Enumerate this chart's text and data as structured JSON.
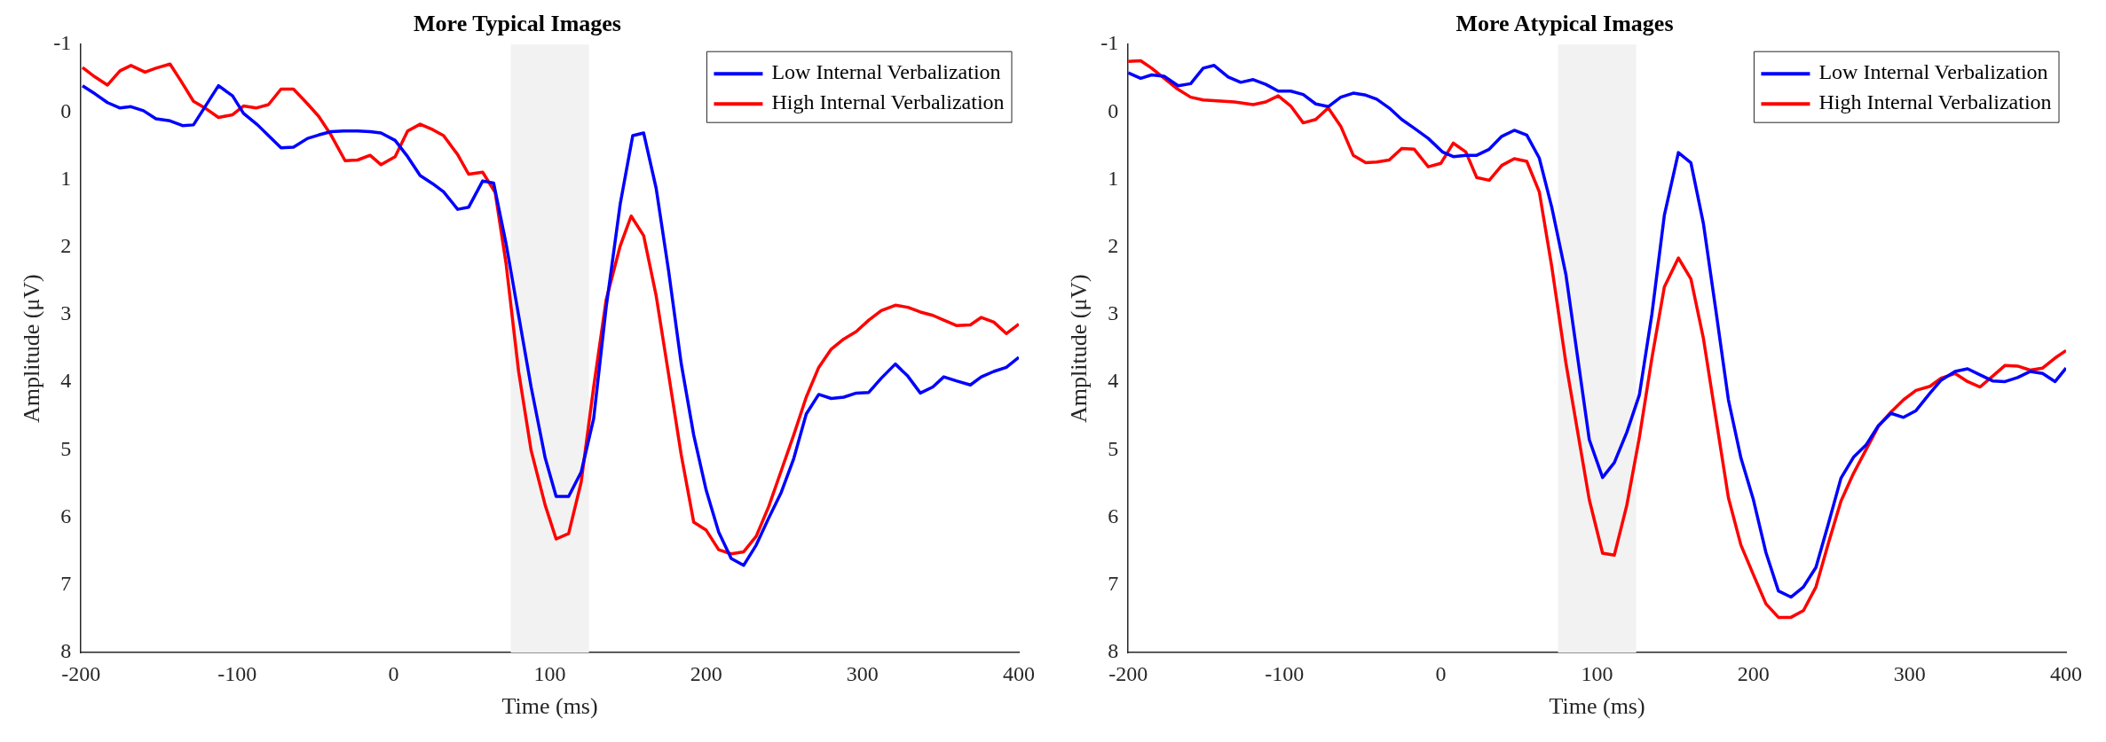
{
  "chart_data": [
    {
      "type": "line",
      "title": "More Typical Images",
      "xlabel": "Time (ms)",
      "ylabel": "Amplitude (μV)",
      "xlim": [
        -200,
        400
      ],
      "xticks": [
        -200,
        -100,
        0,
        100,
        200,
        300,
        400
      ],
      "ylim": [
        8,
        -1
      ],
      "yticks": [
        -1,
        0,
        1,
        2,
        3,
        4,
        5,
        6,
        7,
        8
      ],
      "grid": false,
      "legend": "top right",
      "bands": [
        {
          "axis": "x",
          "from": 75,
          "to": 125,
          "color": "#f2f2f2"
        }
      ],
      "series": [
        {
          "name": "Low Internal Verbalization",
          "color": "#0000ff",
          "x": [
            -199,
            -191,
            -183,
            -175,
            -168,
            -160,
            -152,
            -143,
            -135,
            -128,
            -112,
            -103,
            -96,
            -87,
            -80,
            -72,
            -64,
            -55,
            -48,
            -40,
            -32,
            -23,
            -15,
            -8,
            1,
            9,
            17,
            25,
            32,
            41,
            48,
            57,
            64,
            72,
            80,
            88,
            97,
            104,
            112,
            120,
            128,
            136,
            145,
            153,
            160,
            168,
            176,
            184,
            192,
            200,
            208,
            216,
            224,
            232,
            240,
            248,
            256,
            264,
            272,
            280,
            288,
            296,
            304,
            312,
            321,
            329,
            337,
            345,
            352,
            360,
            369,
            376,
            384,
            392,
            400
          ],
          "values": [
            -0.39,
            -0.27,
            -0.14,
            -0.06,
            -0.08,
            -0.02,
            0.1,
            0.13,
            0.2,
            0.19,
            -0.39,
            -0.24,
            0.02,
            0.19,
            0.35,
            0.53,
            0.52,
            0.39,
            0.34,
            0.29,
            0.28,
            0.28,
            0.29,
            0.31,
            0.42,
            0.66,
            0.94,
            1.06,
            1.18,
            1.44,
            1.41,
            1.02,
            1.05,
            1.95,
            3.01,
            4.07,
            5.12,
            5.69,
            5.69,
            5.33,
            4.54,
            2.89,
            1.36,
            0.35,
            0.31,
            1.13,
            2.36,
            3.72,
            4.78,
            5.6,
            6.22,
            6.61,
            6.71,
            6.41,
            6.01,
            5.63,
            5.13,
            4.47,
            4.18,
            4.24,
            4.22,
            4.16,
            4.15,
            3.94,
            3.73,
            3.91,
            4.16,
            4.07,
            3.92,
            3.98,
            4.04,
            3.92,
            3.84,
            3.78,
            3.63
          ]
        },
        {
          "name": "High Internal Verbalization",
          "color": "#ff0000",
          "x": [
            -199,
            -191,
            -183,
            -175,
            -168,
            -159,
            -152,
            -143,
            -136,
            -128,
            -120,
            -112,
            -103,
            -96,
            -88,
            -80,
            -72,
            -64,
            -55,
            -48,
            -40,
            -31,
            -23,
            -15,
            -8,
            1,
            9,
            17,
            25,
            32,
            41,
            48,
            57,
            65,
            72,
            80,
            88,
            97,
            104,
            112,
            120,
            128,
            136,
            145,
            152,
            160,
            168,
            176,
            184,
            192,
            200,
            208,
            216,
            224,
            232,
            240,
            248,
            256,
            264,
            272,
            280,
            288,
            296,
            304,
            312,
            321,
            329,
            337,
            345,
            352,
            360,
            369,
            376,
            384,
            392,
            400
          ],
          "values": [
            -0.66,
            -0.52,
            -0.4,
            -0.61,
            -0.69,
            -0.59,
            -0.65,
            -0.71,
            -0.46,
            -0.16,
            -0.05,
            0.08,
            0.04,
            -0.09,
            -0.06,
            -0.11,
            -0.34,
            -0.34,
            -0.12,
            0.06,
            0.34,
            0.72,
            0.71,
            0.64,
            0.78,
            0.66,
            0.28,
            0.18,
            0.26,
            0.35,
            0.63,
            0.92,
            0.89,
            1.19,
            2.25,
            3.84,
            5.01,
            5.82,
            6.32,
            6.24,
            5.48,
            4.07,
            2.78,
            1.98,
            1.54,
            1.83,
            2.72,
            3.89,
            5.07,
            6.07,
            6.19,
            6.48,
            6.54,
            6.51,
            6.28,
            5.84,
            5.31,
            4.78,
            4.22,
            3.78,
            3.51,
            3.36,
            3.25,
            3.08,
            2.94,
            2.86,
            2.89,
            2.96,
            3.01,
            3.08,
            3.16,
            3.15,
            3.04,
            3.11,
            3.28,
            3.14
          ]
        }
      ]
    },
    {
      "type": "line",
      "title": "More Atypical Images",
      "xlabel": "Time (ms)",
      "ylabel": "Amplitude (μV)",
      "xlim": [
        -200,
        400
      ],
      "xticks": [
        -200,
        -100,
        0,
        100,
        200,
        300,
        400
      ],
      "ylim": [
        8,
        -1
      ],
      "yticks": [
        -1,
        0,
        1,
        2,
        3,
        4,
        5,
        6,
        7,
        8
      ],
      "grid": false,
      "legend": "top right",
      "bands": [
        {
          "axis": "x",
          "from": 75,
          "to": 125,
          "color": "#f2f2f2"
        }
      ],
      "series": [
        {
          "name": "Low Internal Verbalization",
          "color": "#0000ff",
          "x": [
            -200,
            -192,
            -185,
            -177,
            -168,
            -160,
            -152,
            -145,
            -136,
            -128,
            -120,
            -112,
            -104,
            -96,
            -88,
            -80,
            -72,
            -64,
            -56,
            -48,
            -41,
            -33,
            -25,
            -17,
            -8,
            1,
            8,
            16,
            23,
            31,
            39,
            47,
            55,
            63,
            71,
            80,
            95,
            103.5,
            111,
            119,
            127,
            135,
            143,
            152,
            160,
            168,
            176,
            184,
            192,
            200,
            208,
            216,
            224,
            232,
            240,
            248,
            256,
            264,
            272,
            280,
            288,
            296,
            304,
            313,
            320,
            329,
            337,
            345,
            353,
            361,
            369,
            377,
            385,
            393,
            400
          ],
          "values": [
            -0.58,
            -0.5,
            -0.55,
            -0.53,
            -0.39,
            -0.42,
            -0.65,
            -0.69,
            -0.52,
            -0.44,
            -0.48,
            -0.41,
            -0.31,
            -0.31,
            -0.26,
            -0.12,
            -0.08,
            -0.22,
            -0.28,
            -0.25,
            -0.19,
            -0.06,
            0.11,
            0.24,
            0.39,
            0.59,
            0.66,
            0.64,
            0.64,
            0.55,
            0.36,
            0.27,
            0.34,
            0.68,
            1.41,
            2.4,
            4.85,
            5.41,
            5.19,
            4.74,
            4.19,
            3.0,
            1.53,
            0.6,
            0.75,
            1.65,
            2.94,
            4.26,
            5.12,
            5.74,
            6.52,
            7.09,
            7.18,
            7.03,
            6.74,
            6.09,
            5.42,
            5.11,
            4.93,
            4.64,
            4.46,
            4.52,
            4.42,
            4.16,
            3.97,
            3.84,
            3.8,
            3.89,
            3.98,
            3.99,
            3.93,
            3.84,
            3.87,
            3.99,
            3.79
          ]
        },
        {
          "name": "High Internal Verbalization",
          "color": "#ff0000",
          "x": [
            -200,
            -192,
            -185,
            -169,
            -160,
            -152,
            -132,
            -120,
            -112,
            -104,
            -96,
            -88,
            -80,
            -72,
            -64,
            -56,
            -48,
            -41,
            -33,
            -25,
            -17,
            -8,
            0,
            8,
            16,
            23,
            31,
            39,
            47,
            55,
            63,
            71,
            80,
            95,
            103.5,
            111,
            119,
            127,
            135,
            143,
            152,
            160,
            168,
            176,
            184,
            192,
            200,
            208,
            216,
            224,
            232,
            240,
            248,
            256,
            264,
            272,
            280,
            288,
            296,
            304,
            313,
            320,
            329,
            337,
            345,
            353,
            361,
            369,
            377,
            385,
            393,
            400
          ],
          "values": [
            -0.75,
            -0.76,
            -0.65,
            -0.35,
            -0.22,
            -0.18,
            -0.15,
            -0.11,
            -0.15,
            -0.24,
            -0.09,
            0.16,
            0.11,
            -0.06,
            0.21,
            0.64,
            0.75,
            0.74,
            0.71,
            0.54,
            0.55,
            0.81,
            0.76,
            0.46,
            0.59,
            0.97,
            1.01,
            0.79,
            0.69,
            0.73,
            1.18,
            2.29,
            3.71,
            5.74,
            6.53,
            6.56,
            5.82,
            4.82,
            3.65,
            2.59,
            2.16,
            2.47,
            3.35,
            4.53,
            5.71,
            6.41,
            6.85,
            7.28,
            7.48,
            7.48,
            7.38,
            7.03,
            6.38,
            5.76,
            5.35,
            5.0,
            4.65,
            4.44,
            4.26,
            4.12,
            4.06,
            3.94,
            3.87,
            3.99,
            4.07,
            3.91,
            3.75,
            3.76,
            3.82,
            3.79,
            3.64,
            3.53
          ]
        }
      ]
    }
  ]
}
